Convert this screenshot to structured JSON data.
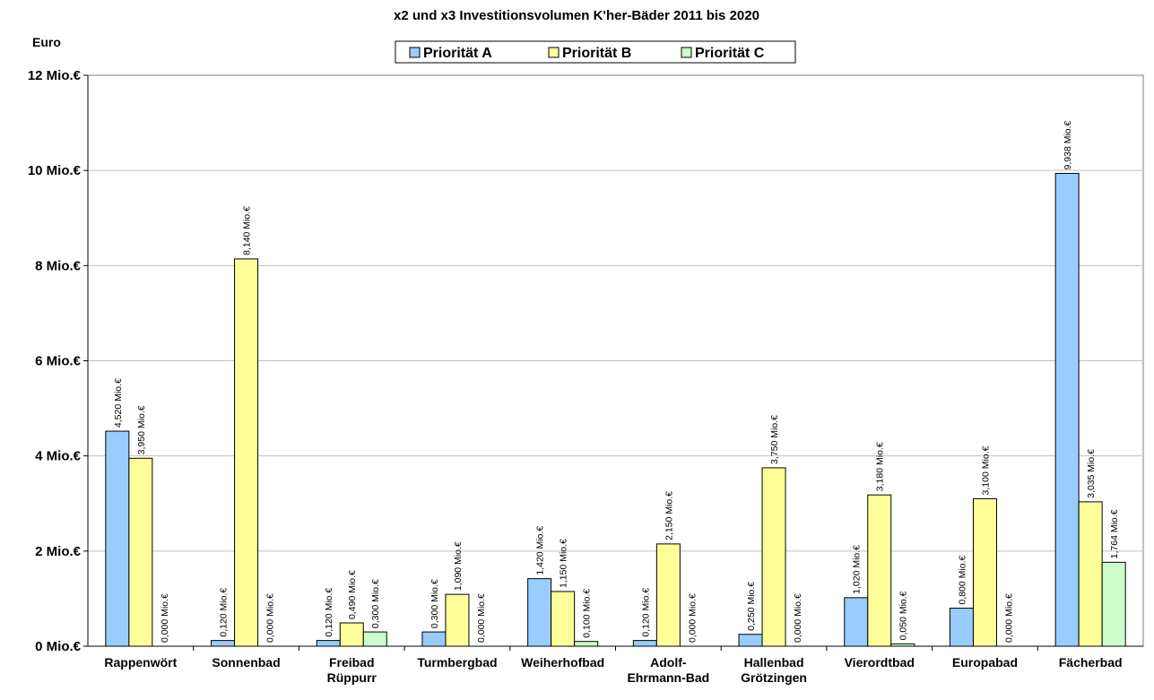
{
  "chart_data": {
    "type": "bar",
    "title": "x2 und x3 Investitionsvolumen K'her-Bäder 2011 bis 2020",
    "ylabel": "Euro",
    "ylim": [
      0,
      12
    ],
    "yticks": [
      "0 Mio.€",
      "2 Mio.€",
      "4 Mio.€",
      "6 Mio.€",
      "8 Mio.€",
      "10 Mio.€",
      "12 Mio.€"
    ],
    "grid": true,
    "legend_position": "top",
    "categories": [
      [
        "Rappenwört"
      ],
      [
        "Sonnenbad"
      ],
      [
        "Freibad",
        "Rüppurr"
      ],
      [
        "Turmbergbad"
      ],
      [
        "Weiherhofbad"
      ],
      [
        "Adolf-",
        "Ehrmann-Bad"
      ],
      [
        "Hallenbad",
        "Grötzingen"
      ],
      [
        "Vierordtbad"
      ],
      [
        "Europabad"
      ],
      [
        "Fächerbad"
      ]
    ],
    "series": [
      {
        "name": "Priorität A",
        "color": "#99ccff",
        "values": [
          4.52,
          0.12,
          0.12,
          0.3,
          1.42,
          0.12,
          0.25,
          1.02,
          0.8,
          9.938
        ],
        "labels": [
          "4,520 Mio.€",
          "0,120 Mio.€",
          "0,120 Mio.€",
          "0,300 Mio.€",
          "1,420 Mio.€",
          "0,120 Mio.€",
          "0,250 Mio.€",
          "1,020 Mio.€",
          "0,800 Mio.€",
          "9,938 Mio.€"
        ]
      },
      {
        "name": "Priorität B",
        "color": "#ffff99",
        "values": [
          3.95,
          8.14,
          0.49,
          1.09,
          1.15,
          2.15,
          3.75,
          3.18,
          3.1,
          3.035
        ],
        "labels": [
          "3,950 Mio.€",
          "8,140 Mio.€",
          "0,490 Mio.€",
          "1,090 Mio.€",
          "1,150 Mio.€",
          "2,150 Mio.€",
          "3,750 Mio.€",
          "3,180 Mio.€",
          "3,100 Mio.€",
          "3,035 Mio.€"
        ]
      },
      {
        "name": "Priorität C",
        "color": "#ccffcc",
        "values": [
          0,
          0,
          0.3,
          0,
          0.1,
          0,
          0,
          0.05,
          0,
          1.764
        ],
        "labels": [
          "0,000 Mio.€",
          "0,000 Mio.€",
          "0,300 Mio.€",
          "0,000 Mio.€",
          "0,100 Mio.€",
          "0,000 Mio.€",
          "0,000 Mio.€",
          "0,050 Mio.€",
          "0,000 Mio.€",
          "1,764 Mio.€"
        ]
      }
    ]
  }
}
